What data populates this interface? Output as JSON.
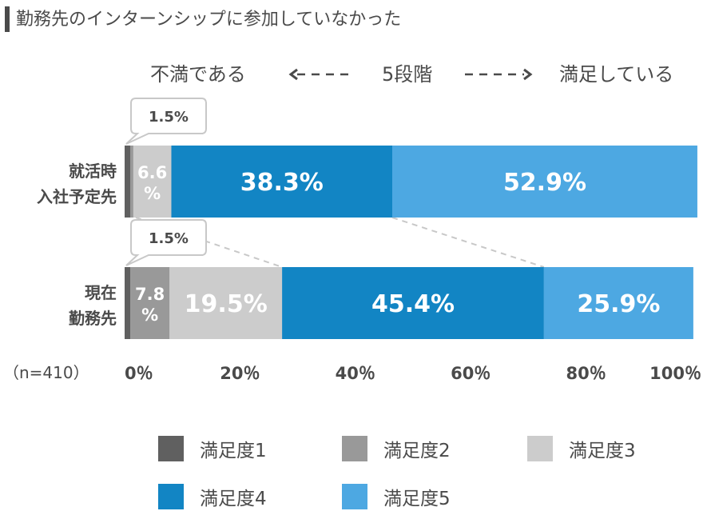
{
  "title": "勤務先のインターンシップに参加していなかった",
  "scale": {
    "left": "不満である",
    "center": "5段階",
    "right": "満足している"
  },
  "n_label": "（n=410）",
  "chart_data": {
    "type": "bar",
    "orientation": "horizontal-stacked-100",
    "categories": [
      [
        "就活時",
        "入社予定先"
      ],
      [
        "現在",
        "勤務先"
      ]
    ],
    "series": [
      {
        "name": "満足度1",
        "color": "#606060",
        "values": [
          null,
          null
        ]
      },
      {
        "name": "満足度2",
        "color": "#999999",
        "values": [
          1.5,
          7.8
        ]
      },
      {
        "name": "満足度3",
        "color": "#cccccc",
        "values": [
          6.6,
          19.5
        ]
      },
      {
        "name": "満足度4",
        "color": "#1285c4",
        "values": [
          38.3,
          45.4
        ]
      },
      {
        "name": "満足度5",
        "color": "#4da8e2",
        "values": [
          52.9,
          25.9
        ]
      }
    ],
    "data_labels": [
      [
        "",
        "1.5%",
        "6.6\n%",
        "38.3%",
        "52.9%"
      ],
      [
        "",
        "7.8\n%",
        "19.5%",
        "45.4%",
        "25.9%"
      ]
    ],
    "callouts": [
      "1.5%",
      "1.5%"
    ],
    "xlim": [
      0,
      100
    ],
    "xticks": [
      "0％",
      "20％",
      "40％",
      "60％",
      "80％",
      "100％"
    ],
    "legend_position": "bottom",
    "grid": false
  }
}
